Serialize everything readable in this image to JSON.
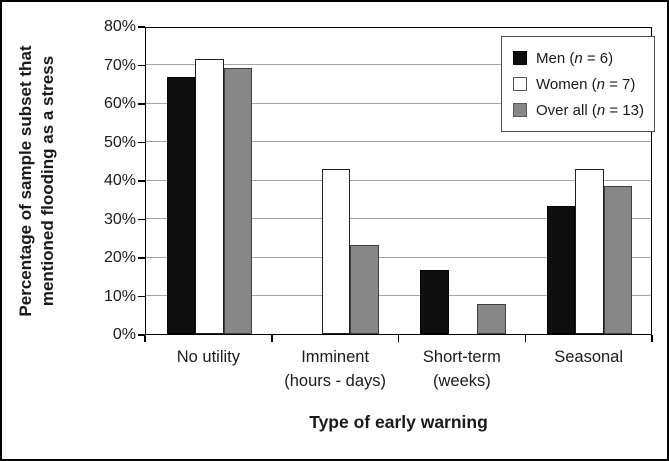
{
  "figure": {
    "background": "#ffffff",
    "border_color": "#000000"
  },
  "chart_data": {
    "type": "bar",
    "title": "",
    "xlabel": "Type of early warning",
    "ylabel": "Percentage of sample subset that mentioned flooding as a stress",
    "ylabel_lines": [
      "Percentage of sample subset that",
      "mentioned flooding as a stress"
    ],
    "categories": [
      "No utility",
      "Imminent (hours - days)",
      "Short-term (weeks)",
      "Seasonal"
    ],
    "category_lines": [
      [
        "No utility"
      ],
      [
        "Imminent",
        "(hours - days)"
      ],
      [
        "Short-term",
        "(weeks)"
      ],
      [
        "Seasonal"
      ]
    ],
    "series": [
      {
        "name": "Men (n = 6)",
        "name_parts": [
          "Men (",
          "n",
          " = 6)"
        ],
        "values": [
          66.7,
          0,
          16.7,
          33.3
        ],
        "fill": "#0f0f0f",
        "border": "#000000",
        "swatch_border": "#000000"
      },
      {
        "name": "Women (n = 7)",
        "name_parts": [
          "Women (",
          "n",
          " = 7)"
        ],
        "values": [
          71.4,
          42.9,
          0,
          42.9
        ],
        "fill": "#ffffff",
        "border": "#1f1f1f",
        "swatch_border": "#595959"
      },
      {
        "name": "Over all (n = 13)",
        "name_parts": [
          "Over all (",
          "n",
          " = 13)"
        ],
        "values": [
          69.2,
          23.1,
          7.7,
          38.5
        ],
        "fill": "#878787",
        "border": "#404040",
        "swatch_border": "#595959"
      }
    ],
    "ylim": [
      0,
      80
    ],
    "yticks": [
      "0%",
      "10%",
      "20%",
      "30%",
      "40%",
      "50%",
      "60%",
      "70%",
      "80%"
    ],
    "ytick_values": [
      0,
      10,
      20,
      30,
      40,
      50,
      60,
      70,
      80
    ],
    "grid": true,
    "gridline_color": "#a3a3a3",
    "axis_color": "#000000",
    "legend_position": "top-right"
  }
}
